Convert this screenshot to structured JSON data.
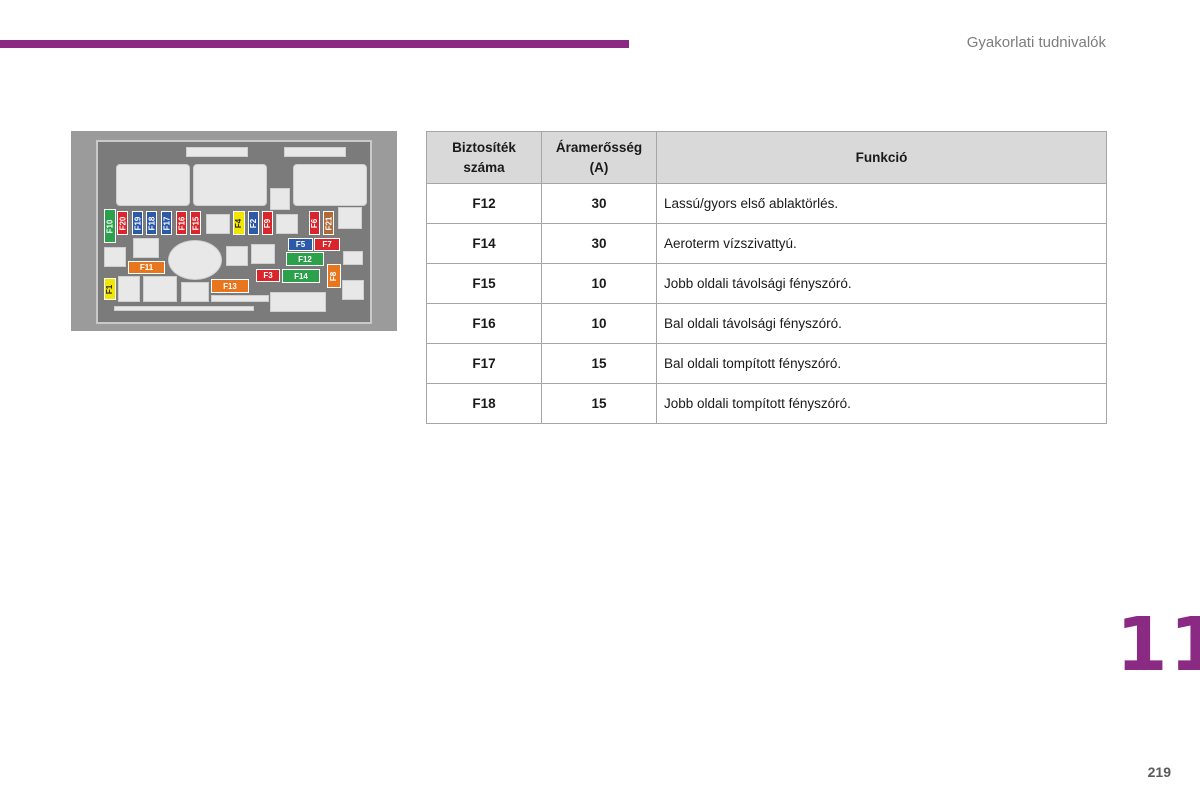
{
  "header": {
    "section_title": "Gyakorlati tudnivalók",
    "accent_color": "#8a2a83"
  },
  "chapter_number": "11",
  "page_number": "219",
  "diagram": {
    "fuses": {
      "F10": "F10",
      "F20": "F20",
      "F19": "F19",
      "F18": "F18",
      "F17": "F17",
      "F16": "F16",
      "F15": "F15",
      "F4": "F4",
      "F2": "F2",
      "F9": "F9",
      "F6": "F6",
      "F21": "F21",
      "F5": "F5",
      "F7": "F7",
      "F11": "F11",
      "F12": "F12",
      "F3": "F3",
      "F14": "F14",
      "F8": "F8",
      "F1": "F1",
      "F13": "F13"
    },
    "colors": {
      "green": "#2aa14a",
      "red": "#d9252b",
      "blue": "#2d5aa8",
      "yellow": "#f2e500",
      "orange": "#e8761e",
      "brown": "#b06a38"
    }
  },
  "table": {
    "headers": {
      "fuse_line1": "Biztosíték",
      "fuse_line2": "száma",
      "amp_line1": "Áramerősség",
      "amp_line2": "(A)",
      "function": "Funkció"
    },
    "rows": [
      {
        "fuse": "F12",
        "amps": "30",
        "function": "Lassú/gyors első ablaktörlés."
      },
      {
        "fuse": "F14",
        "amps": "30",
        "function": "Aeroterm vízszivattyú."
      },
      {
        "fuse": "F15",
        "amps": "10",
        "function": "Jobb oldali távolsági fényszóró."
      },
      {
        "fuse": "F16",
        "amps": "10",
        "function": "Bal oldali távolsági fényszóró."
      },
      {
        "fuse": "F17",
        "amps": "15",
        "function": "Bal oldali tompított fényszóró."
      },
      {
        "fuse": "F18",
        "amps": "15",
        "function": "Jobb oldali tompított fényszóró."
      }
    ]
  }
}
